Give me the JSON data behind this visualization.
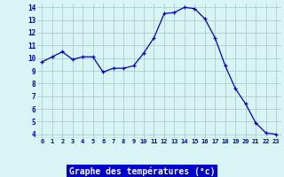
{
  "x": [
    0,
    1,
    2,
    3,
    4,
    5,
    6,
    7,
    8,
    9,
    10,
    11,
    12,
    13,
    14,
    15,
    16,
    17,
    18,
    19,
    20,
    21,
    22,
    23
  ],
  "y": [
    9.7,
    10.1,
    10.5,
    9.9,
    10.1,
    10.1,
    8.9,
    9.2,
    9.2,
    9.4,
    10.4,
    11.6,
    13.5,
    13.6,
    14.0,
    13.9,
    13.1,
    11.6,
    9.4,
    7.6,
    6.4,
    4.9,
    4.1,
    4.0
  ],
  "line_color": "#0000cc",
  "marker": "+",
  "marker_color": "#0000cc",
  "bg_color": "#d8f4f4",
  "grid_color": "#a0c8c8",
  "xlabel": "Graphe des températures (°c)",
  "xlabel_color": "white",
  "xlabel_bg": "#0000cc",
  "tick_color": "#0000cc",
  "tick_label_color": "#0000cc",
  "ylim": [
    4,
    14
  ],
  "xlim": [
    -0.5,
    23.5
  ],
  "yticks": [
    4,
    5,
    6,
    7,
    8,
    9,
    10,
    11,
    12,
    13,
    14
  ],
  "xticks": [
    0,
    1,
    2,
    3,
    4,
    5,
    6,
    7,
    8,
    9,
    10,
    11,
    12,
    13,
    14,
    15,
    16,
    17,
    18,
    19,
    20,
    21,
    22,
    23
  ]
}
